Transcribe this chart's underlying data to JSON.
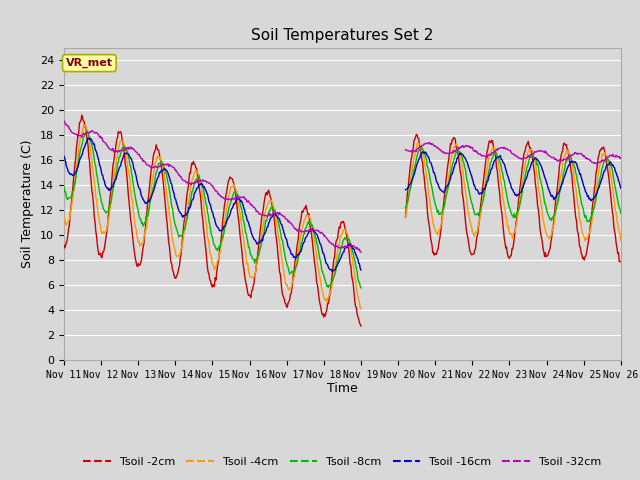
{
  "title": "Soil Temperatures Set 2",
  "xlabel": "Time",
  "ylabel": "Soil Temperature (C)",
  "ylim": [
    0,
    25
  ],
  "yticks": [
    0,
    2,
    4,
    6,
    8,
    10,
    12,
    14,
    16,
    18,
    20,
    22,
    24
  ],
  "figure_bg": "#d8d8d8",
  "axes_bg": "#d8d8d8",
  "grid_color": "#ffffff",
  "annotation_text": "VR_met",
  "annotation_bg": "#ffffaa",
  "annotation_border": "#aaaa00",
  "annotation_text_color": "#880000",
  "colors": {
    "t2": "#cc0000",
    "t4": "#ff9900",
    "t8": "#00bb00",
    "t16": "#0000cc",
    "t32": "#bb00bb"
  },
  "legend_labels": [
    "Tsoil -2cm",
    "Tsoil -4cm",
    "Tsoil -8cm",
    "Tsoil -16cm",
    "Tsoil -32cm"
  ]
}
